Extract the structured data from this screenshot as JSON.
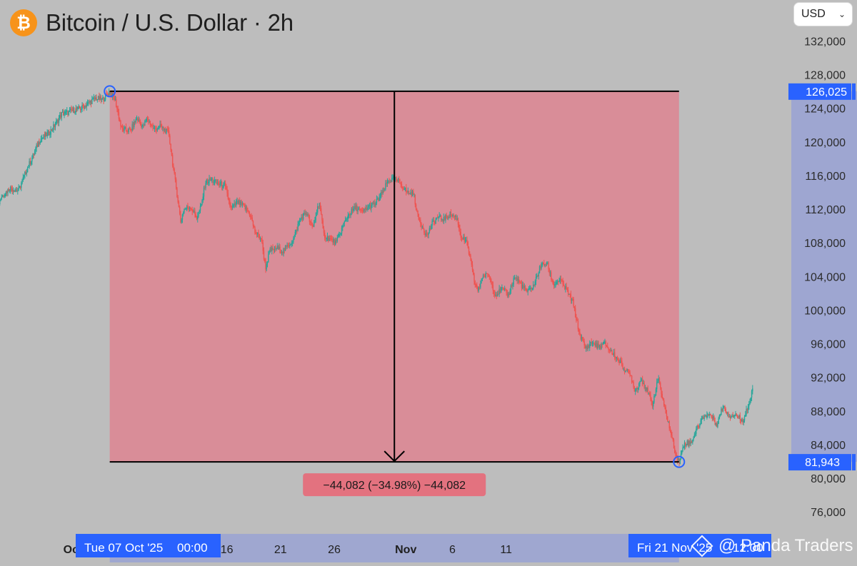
{
  "header": {
    "title": "Bitcoin / U.S. Dollar · 2h",
    "logo_glyph": "₿",
    "logo_color": "#f7931a"
  },
  "currency": {
    "selected": "USD"
  },
  "watermark": {
    "text": "@ Panda Traders",
    "icon": "panda-logo-icon"
  },
  "chart_data": {
    "type": "candlestick",
    "title": "Bitcoin / U.S. Dollar · 2h",
    "xlabel": "",
    "ylabel": "",
    "ylim": [
      72000,
      136000
    ],
    "grid": false,
    "y_ticks": [
      "132,000",
      "128,000",
      "124,000",
      "120,000",
      "116,000",
      "112,000",
      "108,000",
      "104,000",
      "100,000",
      "96,000",
      "92,000",
      "88,000",
      "84,000",
      "80,000",
      "76,000"
    ],
    "y_tick_values": [
      132000,
      128000,
      124000,
      120000,
      116000,
      112000,
      108000,
      104000,
      100000,
      96000,
      92000,
      88000,
      84000,
      80000,
      76000
    ],
    "x_ticks": [
      {
        "label": "26",
        "day": -10,
        "bold": false
      },
      {
        "label": "Oct",
        "day": 0,
        "bold": true
      },
      {
        "label": "16",
        "day": 15,
        "bold": false
      },
      {
        "label": "21",
        "day": 20,
        "bold": false
      },
      {
        "label": "26",
        "day": 25,
        "bold": false
      },
      {
        "label": "Nov",
        "day": 31,
        "bold": true
      },
      {
        "label": "6",
        "day": 36,
        "bold": false
      },
      {
        "label": "11",
        "day": 41,
        "bold": false
      }
    ],
    "series": [
      {
        "name": "",
        "price_path": [
          [
            -11.8,
            113500
          ],
          [
            -11.2,
            110500
          ],
          [
            -10.6,
            109200
          ],
          [
            -9.8,
            109500
          ],
          [
            -9,
            109500
          ],
          [
            -8,
            109300
          ],
          [
            -7.2,
            110000
          ],
          [
            -6.6,
            111500
          ],
          [
            -6,
            113500
          ],
          [
            -5.2,
            114500
          ],
          [
            -4.4,
            114200
          ],
          [
            -3.6,
            116800
          ],
          [
            -3,
            118500
          ],
          [
            -2.4,
            120300
          ],
          [
            -1.6,
            121000
          ],
          [
            -1,
            122000
          ],
          [
            -0.4,
            123300
          ],
          [
            0.2,
            123500
          ],
          [
            0.8,
            123800
          ],
          [
            1.4,
            124000
          ],
          [
            2,
            124500
          ],
          [
            2.8,
            125200
          ],
          [
            3.4,
            125000
          ],
          [
            4.1,
            126025
          ],
          [
            4.6,
            125000
          ],
          [
            5.2,
            121500
          ],
          [
            6,
            121300
          ],
          [
            6.6,
            122800
          ],
          [
            7.2,
            121800
          ],
          [
            7.6,
            122800
          ],
          [
            8.2,
            121500
          ],
          [
            8.8,
            121800
          ],
          [
            9.6,
            121000
          ],
          [
            10,
            117000
          ],
          [
            10.4,
            113500
          ],
          [
            10.7,
            110500
          ],
          [
            11,
            112000
          ],
          [
            11.6,
            112300
          ],
          [
            12.2,
            111000
          ],
          [
            12.6,
            112300
          ],
          [
            13,
            115200
          ],
          [
            13.6,
            115500
          ],
          [
            14.2,
            115000
          ],
          [
            14.8,
            114800
          ],
          [
            15.4,
            112000
          ],
          [
            16,
            112800
          ],
          [
            16.6,
            112300
          ],
          [
            17.2,
            111300
          ],
          [
            17.6,
            109300
          ],
          [
            18.2,
            108500
          ],
          [
            18.6,
            105000
          ],
          [
            19,
            107000
          ],
          [
            19.6,
            107400
          ],
          [
            20.2,
            107000
          ],
          [
            20.6,
            107500
          ],
          [
            21.2,
            108400
          ],
          [
            21.8,
            110800
          ],
          [
            22.4,
            111600
          ],
          [
            23,
            109700
          ],
          [
            23.6,
            113000
          ],
          [
            24,
            109000
          ],
          [
            24.6,
            108400
          ],
          [
            25.2,
            108000
          ],
          [
            25.8,
            110000
          ],
          [
            26.4,
            111500
          ],
          [
            27,
            112200
          ],
          [
            27.6,
            111600
          ],
          [
            28.2,
            112300
          ],
          [
            28.8,
            112600
          ],
          [
            29.4,
            113800
          ],
          [
            30,
            115300
          ],
          [
            30.6,
            115600
          ],
          [
            31.2,
            115000
          ],
          [
            31.8,
            114000
          ],
          [
            32.4,
            113800
          ],
          [
            32.8,
            111000
          ],
          [
            33.2,
            110000
          ],
          [
            33.6,
            108800
          ],
          [
            34.1,
            110200
          ],
          [
            34.6,
            111000
          ],
          [
            35.2,
            110800
          ],
          [
            35.8,
            111400
          ],
          [
            36.4,
            111000
          ],
          [
            36.8,
            108800
          ],
          [
            37.4,
            107800
          ],
          [
            38,
            103600
          ],
          [
            38.4,
            102200
          ],
          [
            38.8,
            104000
          ],
          [
            39.4,
            104200
          ],
          [
            40,
            101800
          ],
          [
            40.6,
            102500
          ],
          [
            41.2,
            101800
          ],
          [
            41.8,
            104000
          ],
          [
            42.4,
            103000
          ],
          [
            43,
            102100
          ],
          [
            43.6,
            103000
          ],
          [
            44.2,
            105200
          ],
          [
            44.8,
            105600
          ],
          [
            45.4,
            103000
          ],
          [
            46,
            103600
          ],
          [
            46.6,
            102400
          ],
          [
            47.2,
            101000
          ],
          [
            47.8,
            97300
          ],
          [
            48.4,
            95400
          ],
          [
            49,
            96200
          ],
          [
            49.6,
            95600
          ],
          [
            50.2,
            96000
          ],
          [
            50.8,
            95000
          ],
          [
            51.4,
            94200
          ],
          [
            52,
            93000
          ],
          [
            52.6,
            92200
          ],
          [
            53,
            90400
          ],
          [
            53.6,
            91800
          ],
          [
            54.2,
            90200
          ],
          [
            54.6,
            88700
          ],
          [
            55.2,
            92000
          ],
          [
            55.6,
            89000
          ],
          [
            56,
            87200
          ],
          [
            56.4,
            85000
          ],
          [
            56.8,
            82800
          ],
          [
            57.1,
            81943
          ],
          [
            57.6,
            84200
          ],
          [
            58.2,
            84200
          ],
          [
            58.8,
            86000
          ],
          [
            59.4,
            87400
          ],
          [
            60,
            87600
          ],
          [
            60.6,
            86400
          ],
          [
            61.2,
            88600
          ],
          [
            61.8,
            87400
          ],
          [
            62.4,
            87600
          ],
          [
            63,
            86800
          ],
          [
            63.6,
            88800
          ],
          [
            64,
            90600
          ]
        ]
      }
    ],
    "measure": {
      "start_date": "Tue 07 Oct '25",
      "start_time": "00:00",
      "end_date": "Fri 21 Nov '25",
      "end_time": "12:00",
      "high": 126025,
      "low": 81943,
      "high_label": "126,025",
      "low_label": "81,943",
      "change_label": "−44,082 (−34.98%) −44,082",
      "box_color": "#f0667a"
    },
    "up_color": "#26a69a",
    "down_color": "#ef5350"
  }
}
